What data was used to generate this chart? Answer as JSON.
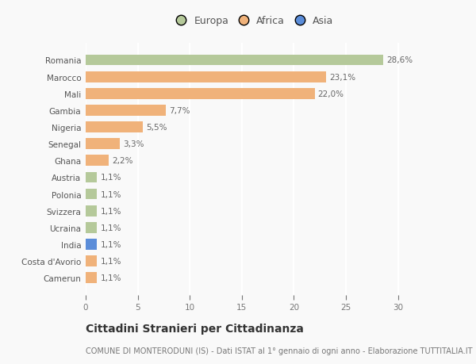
{
  "countries": [
    "Romania",
    "Marocco",
    "Mali",
    "Gambia",
    "Nigeria",
    "Senegal",
    "Ghana",
    "Austria",
    "Polonia",
    "Svizzera",
    "Ucraina",
    "India",
    "Costa d'Avorio",
    "Camerun"
  ],
  "values": [
    28.6,
    23.1,
    22.0,
    7.7,
    5.5,
    3.3,
    2.2,
    1.1,
    1.1,
    1.1,
    1.1,
    1.1,
    1.1,
    1.1
  ],
  "labels": [
    "28,6%",
    "23,1%",
    "22,0%",
    "7,7%",
    "5,5%",
    "3,3%",
    "2,2%",
    "1,1%",
    "1,1%",
    "1,1%",
    "1,1%",
    "1,1%",
    "1,1%",
    "1,1%"
  ],
  "continents": [
    "Europa",
    "Africa",
    "Africa",
    "Africa",
    "Africa",
    "Africa",
    "Africa",
    "Europa",
    "Europa",
    "Europa",
    "Europa",
    "Asia",
    "Africa",
    "Africa"
  ],
  "colors": {
    "Europa": "#b5c99a",
    "Africa": "#f0b27a",
    "Asia": "#5b8dd9"
  },
  "xlim": [
    0,
    32
  ],
  "xticks": [
    0,
    5,
    10,
    15,
    20,
    25,
    30
  ],
  "title": "Cittadini Stranieri per Cittadinanza",
  "subtitle": "COMUNE DI MONTERODUNI (IS) - Dati ISTAT al 1° gennaio di ogni anno - Elaborazione TUTTITALIA.IT",
  "background_color": "#f9f9f9",
  "grid_color": "#ffffff",
  "bar_height": 0.65,
  "title_fontsize": 10,
  "subtitle_fontsize": 7,
  "label_fontsize": 7.5,
  "tick_fontsize": 7.5,
  "legend_fontsize": 9
}
